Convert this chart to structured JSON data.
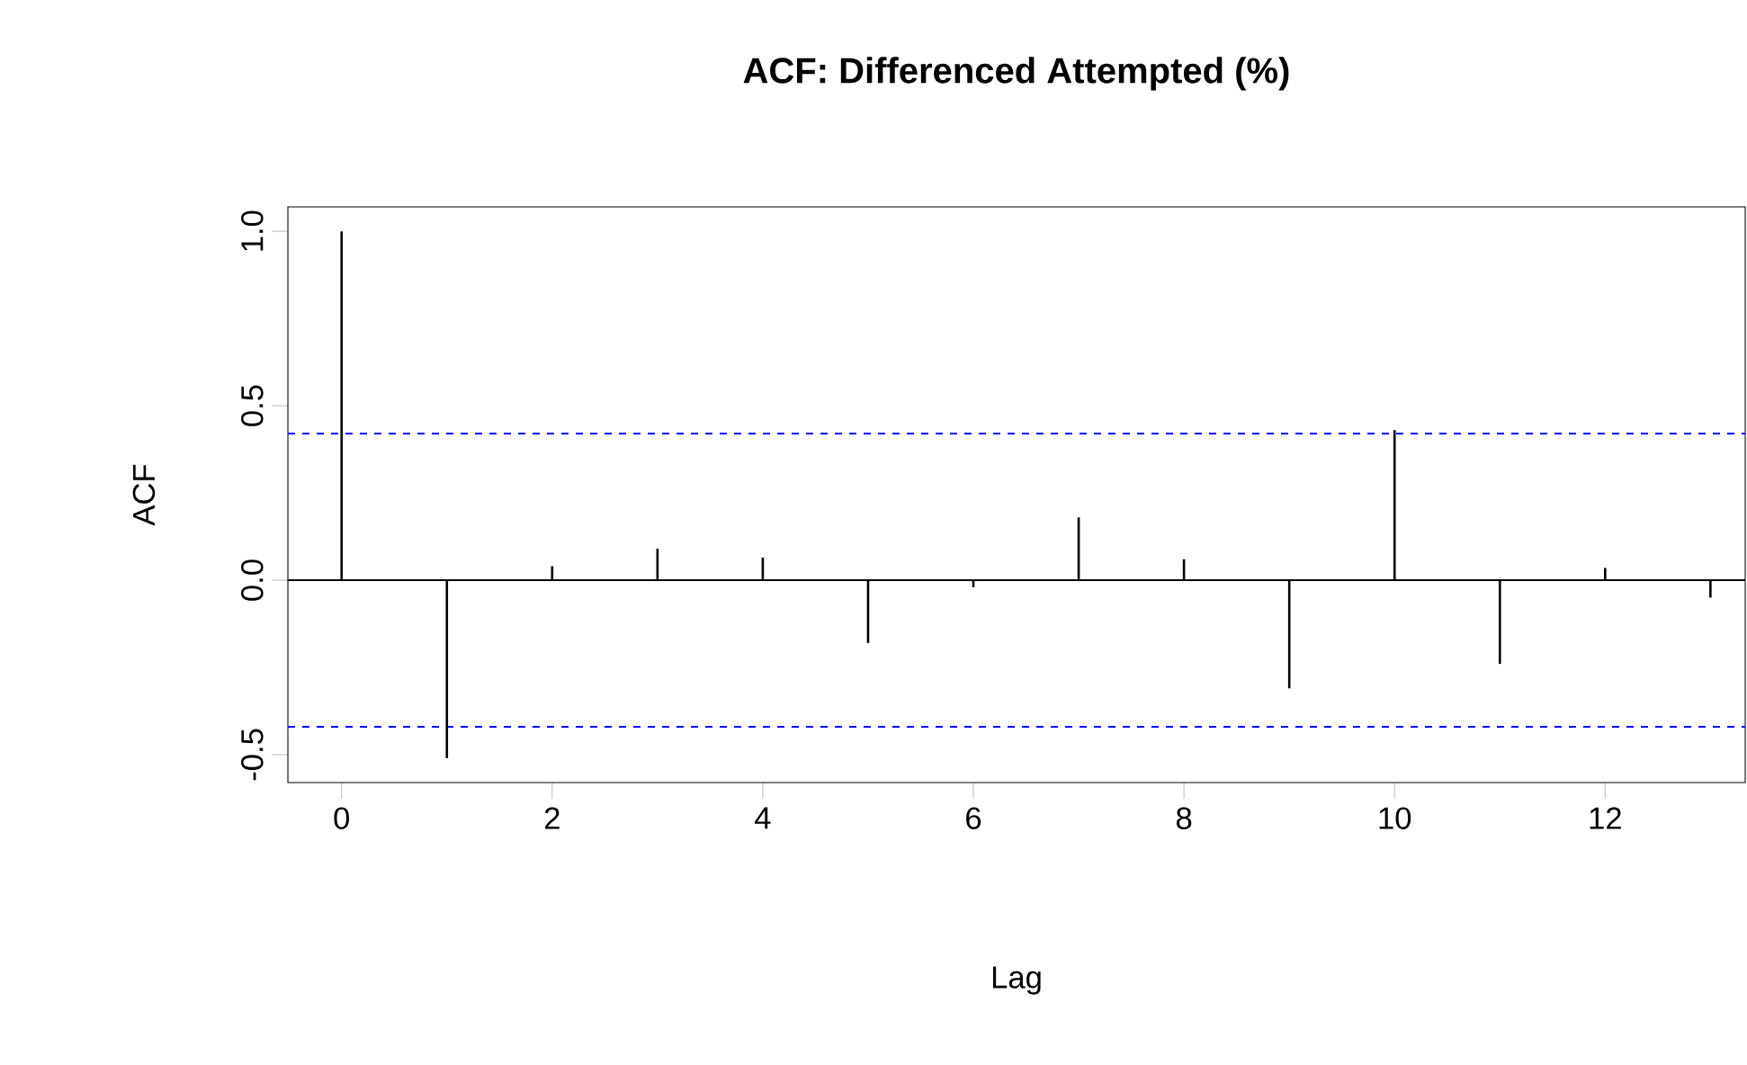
{
  "chart_data": {
    "type": "bar",
    "title": "ACF: Differenced Attempted (%)",
    "xlabel": "Lag",
    "ylabel": "ACF",
    "x": [
      0,
      1,
      2,
      3,
      4,
      5,
      6,
      7,
      8,
      9,
      10,
      11,
      12,
      13
    ],
    "series": [
      {
        "color": "#000000",
        "values": [
          1.0,
          -0.51,
          0.04,
          0.09,
          0.065,
          -0.18,
          -0.02,
          0.18,
          0.06,
          -0.31,
          0.43,
          -0.24,
          0.035,
          -0.05
        ]
      }
    ],
    "xlim": [
      -0.51,
      13.33
    ],
    "ylim": [
      -0.58,
      1.07
    ],
    "xticks": [
      0,
      2,
      4,
      6,
      8,
      10,
      12
    ],
    "yticks": [
      {
        "value": -0.5,
        "label": "-0.5"
      },
      {
        "value": 0,
        "label": "0.0"
      },
      {
        "value": 0.5,
        "label": "0.5"
      },
      {
        "value": 1,
        "label": "1.0"
      }
    ],
    "ref_lines": [
      {
        "axis": "y",
        "value": 0.42,
        "color": "#0000ff",
        "line_style": "dashed"
      },
      {
        "axis": "y",
        "value": -0.42,
        "color": "#0000ff",
        "line_style": "dashed"
      },
      {
        "axis": "y",
        "value": 0,
        "color": "#000000",
        "line_style": "solid"
      }
    ],
    "grid": false
  }
}
